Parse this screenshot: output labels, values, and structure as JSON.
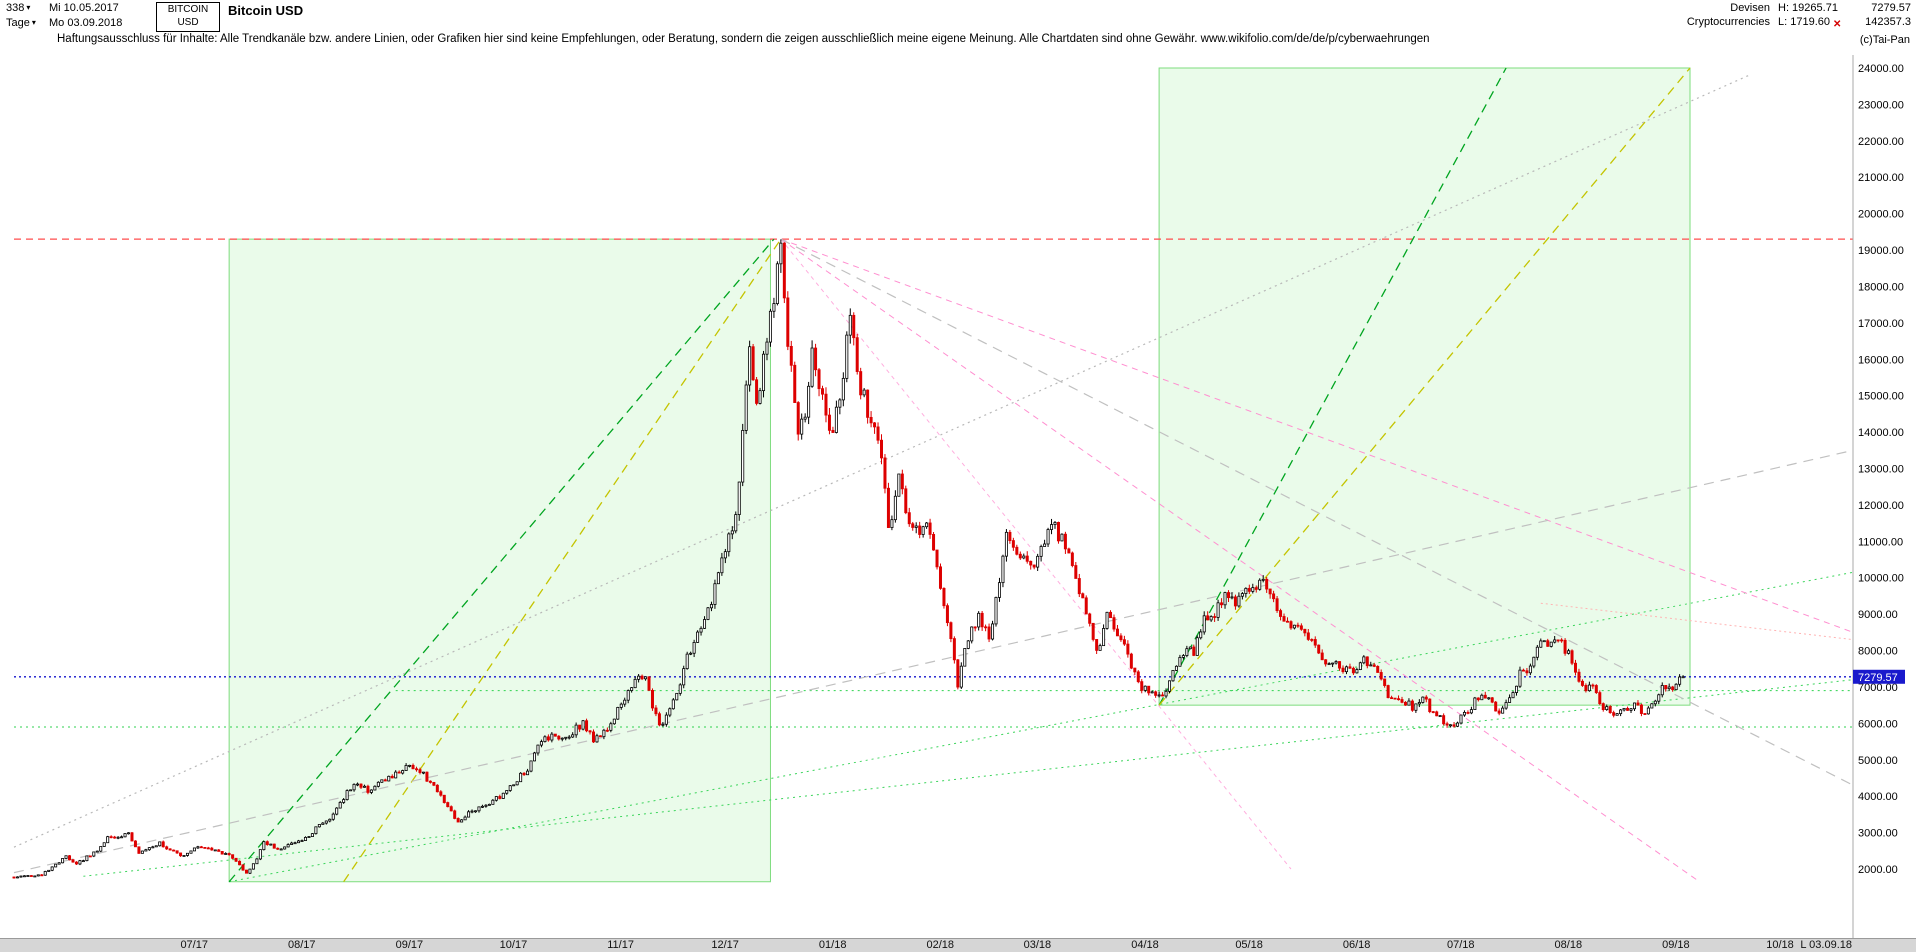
{
  "header": {
    "bars_count": "338",
    "date_from": "Mi 10.05.2017",
    "period": "Tage",
    "date_to": "Mo 03.09.2018",
    "symbol_line1": "BITCOIN",
    "symbol_line2": "USD",
    "title": "Bitcoin USD",
    "category_line1": "Devisen",
    "category_line2": "Cryptocurrencies",
    "high_label": "H: 19265.71",
    "low_label": "L: 1719.60",
    "last_price_text": "7279.57",
    "volume_text": "142357.3",
    "copyright": "(c)Tai-Pan"
  },
  "disclaimer": "Haftungsausschluss für Inhalte: Alle Trendkanäle bzw. andere Linien, oder Grafiken hier sind keine Empfehlungen, oder Beratung, sondern die zeigen ausschließlich meine eigene Meinung. Alle Chartdaten sind ohne Gewähr.  www.wikifolio.com/de/de/p/cyberwaehrungen",
  "footer": {
    "last_date_label": "L 03.09.18"
  },
  "chart_data": {
    "type": "candlestick",
    "title": "Bitcoin USD",
    "x_start_date": "2017-05-10",
    "x_end_date": "2018-09-03",
    "bars": 338,
    "high": 19265.71,
    "low": 1719.6,
    "last_price": 7279.57,
    "ylim": [
      1500,
      24500
    ],
    "y_ticks": [
      2000,
      3000,
      4000,
      5000,
      6000,
      7000,
      8000,
      9000,
      10000,
      11000,
      12000,
      13000,
      14000,
      15000,
      16000,
      17000,
      18000,
      19000,
      20000,
      21000,
      22000,
      23000,
      24000
    ],
    "x_ticks": [
      {
        "label": "07/17",
        "day": 52
      },
      {
        "label": "08/17",
        "day": 83
      },
      {
        "label": "09/17",
        "day": 114
      },
      {
        "label": "10/17",
        "day": 144
      },
      {
        "label": "11/17",
        "day": 175
      },
      {
        "label": "12/17",
        "day": 205
      },
      {
        "label": "01/18",
        "day": 236
      },
      {
        "label": "02/18",
        "day": 267
      },
      {
        "label": "03/18",
        "day": 295
      },
      {
        "label": "04/18",
        "day": 326
      },
      {
        "label": "05/18",
        "day": 356
      },
      {
        "label": "06/18",
        "day": 387
      },
      {
        "label": "07/18",
        "day": 417
      },
      {
        "label": "08/18",
        "day": 448
      },
      {
        "label": "09/18",
        "day": 479
      },
      {
        "label": "10/18",
        "day": 509
      }
    ],
    "colors": {
      "up_candle": "#000000",
      "up_fill": "#ffffff",
      "down_candle": "#dd0000",
      "box_fill": "rgba(150,235,150,0.20)",
      "box_stroke": "#7ddc7d",
      "last_price_tag": "#1a1acc"
    },
    "anchors": [
      [
        0,
        1780
      ],
      [
        8,
        1850
      ],
      [
        11,
        2050
      ],
      [
        15,
        2350
      ],
      [
        18,
        2150
      ],
      [
        24,
        2500
      ],
      [
        27,
        2870
      ],
      [
        33,
        2950
      ],
      [
        36,
        2450
      ],
      [
        40,
        2650
      ],
      [
        42,
        2700
      ],
      [
        48,
        2350
      ],
      [
        52,
        2550
      ],
      [
        55,
        2600
      ],
      [
        58,
        2500
      ],
      [
        62,
        2400
      ],
      [
        64,
        2250
      ],
      [
        67,
        1880
      ],
      [
        70,
        2300
      ],
      [
        72,
        2750
      ],
      [
        75,
        2600
      ],
      [
        77,
        2550
      ],
      [
        80,
        2700
      ],
      [
        83,
        2750
      ],
      [
        88,
        3200
      ],
      [
        92,
        3450
      ],
      [
        96,
        4150
      ],
      [
        99,
        4350
      ],
      [
        102,
        4150
      ],
      [
        106,
        4400
      ],
      [
        110,
        4600
      ],
      [
        114,
        4900
      ],
      [
        118,
        4600
      ],
      [
        121,
        4250
      ],
      [
        125,
        3700
      ],
      [
        128,
        3250
      ],
      [
        132,
        3600
      ],
      [
        136,
        3750
      ],
      [
        140,
        4000
      ],
      [
        144,
        4350
      ],
      [
        148,
        4750
      ],
      [
        152,
        5500
      ],
      [
        156,
        5650
      ],
      [
        160,
        5700
      ],
      [
        164,
        6000
      ],
      [
        167,
        5550
      ],
      [
        170,
        5750
      ],
      [
        174,
        6350
      ],
      [
        178,
        7100
      ],
      [
        182,
        7400
      ],
      [
        184,
        6450
      ],
      [
        186,
        5900
      ],
      [
        190,
        6550
      ],
      [
        194,
        7800
      ],
      [
        199,
        8750
      ],
      [
        202,
        9700
      ],
      [
        205,
        10900
      ],
      [
        208,
        11600
      ],
      [
        212,
        16200
      ],
      [
        214,
        14600
      ],
      [
        217,
        16700
      ],
      [
        219,
        17600
      ],
      [
        221,
        19200
      ],
      [
        223,
        16500
      ],
      [
        226,
        13900
      ],
      [
        228,
        14600
      ],
      [
        230,
        16100
      ],
      [
        233,
        15000
      ],
      [
        236,
        13900
      ],
      [
        238,
        15000
      ],
      [
        241,
        17100
      ],
      [
        244,
        15200
      ],
      [
        247,
        14300
      ],
      [
        250,
        13500
      ],
      [
        252,
        11200
      ],
      [
        255,
        12900
      ],
      [
        258,
        11500
      ],
      [
        261,
        11300
      ],
      [
        263,
        11600
      ],
      [
        266,
        10200
      ],
      [
        268,
        9100
      ],
      [
        270,
        8300
      ],
      [
        272,
        6950
      ],
      [
        274,
        8200
      ],
      [
        278,
        8900
      ],
      [
        281,
        8300
      ],
      [
        284,
        9900
      ],
      [
        286,
        11200
      ],
      [
        290,
        10500
      ],
      [
        294,
        10300
      ],
      [
        297,
        11000
      ],
      [
        299,
        11500
      ],
      [
        303,
        10900
      ],
      [
        306,
        9900
      ],
      [
        309,
        9100
      ],
      [
        312,
        7900
      ],
      [
        315,
        8950
      ],
      [
        318,
        8500
      ],
      [
        321,
        7900
      ],
      [
        324,
        7100
      ],
      [
        326,
        6950
      ],
      [
        329,
        6800
      ],
      [
        331,
        6650
      ],
      [
        334,
        7400
      ],
      [
        337,
        7950
      ],
      [
        340,
        8000
      ],
      [
        343,
        8900
      ],
      [
        346,
        8950
      ],
      [
        349,
        9650
      ],
      [
        352,
        9350
      ],
      [
        355,
        9600
      ],
      [
        358,
        9750
      ],
      [
        360,
        9850
      ],
      [
        364,
        9200
      ],
      [
        368,
        8700
      ],
      [
        371,
        8450
      ],
      [
        374,
        8250
      ],
      [
        378,
        7550
      ],
      [
        381,
        7600
      ],
      [
        385,
        7450
      ],
      [
        389,
        7700
      ],
      [
        392,
        7500
      ],
      [
        396,
        6800
      ],
      [
        399,
        6750
      ],
      [
        403,
        6450
      ],
      [
        406,
        6700
      ],
      [
        410,
        6150
      ],
      [
        413,
        6050
      ],
      [
        415,
        5880
      ],
      [
        418,
        6250
      ],
      [
        421,
        6600
      ],
      [
        424,
        6750
      ],
      [
        428,
        6350
      ],
      [
        431,
        6650
      ],
      [
        434,
        7350
      ],
      [
        437,
        7450
      ],
      [
        440,
        8350
      ],
      [
        443,
        8200
      ],
      [
        446,
        8150
      ],
      [
        449,
        7750
      ],
      [
        452,
        7000
      ],
      [
        455,
        6950
      ],
      [
        458,
        6400
      ],
      [
        461,
        6250
      ],
      [
        464,
        6350
      ],
      [
        467,
        6450
      ],
      [
        470,
        6300
      ],
      [
        473,
        6700
      ],
      [
        475,
        7000
      ],
      [
        478,
        6950
      ],
      [
        481,
        7279.57
      ]
    ],
    "boxes": [
      {
        "name": "trend-box-2017",
        "d1": 62,
        "p1": 1650,
        "d2": 218,
        "p2": 19300
      },
      {
        "name": "trend-box-2018",
        "d1": 330,
        "p1": 6500,
        "d2": 483,
        "p2": 24000
      }
    ],
    "trendlines": [
      {
        "name": "resistance-19300",
        "d1": 0,
        "p1": 19300,
        "d2": 530,
        "p2": 19300,
        "color": "#ff4d4d",
        "dash": "7,5",
        "w": 1.2
      },
      {
        "name": "last-price-line",
        "d1": 0,
        "p1": 7279.57,
        "d2": 530,
        "p2": 7279.57,
        "color": "#1515cc",
        "dash": "2,3",
        "w": 1.4
      },
      {
        "name": "support-6900",
        "d1": 110,
        "p1": 6900,
        "d2": 530,
        "p2": 6900,
        "color": "#2fd24f",
        "dash": "2,4",
        "w": 1
      },
      {
        "name": "support-5900",
        "d1": 0,
        "p1": 5900,
        "d2": 530,
        "p2": 5900,
        "color": "#2fd24f",
        "dash": "2,4",
        "w": 1
      },
      {
        "name": "rising-support-long",
        "d1": 62,
        "p1": 1650,
        "d2": 530,
        "p2": 10150,
        "color": "#3bd45b",
        "dash": "2,4",
        "w": 1
      },
      {
        "name": "rising-support-flat",
        "d1": 20,
        "p1": 1800,
        "d2": 530,
        "p2": 7200,
        "color": "#3bd45b",
        "dash": "2,4",
        "w": 1
      },
      {
        "name": "boxA-green-diagonal",
        "d1": 62,
        "p1": 1650,
        "d2": 219,
        "p2": 19300,
        "color": "#00a520",
        "dash": "9,6",
        "w": 1.3
      },
      {
        "name": "boxA-yellow-diagonal",
        "d1": 95,
        "p1": 1650,
        "d2": 221,
        "p2": 19300,
        "color": "#c4c400",
        "dash": "9,6",
        "w": 1.3
      },
      {
        "name": "boxB-green-diagonal",
        "d1": 330,
        "p1": 6500,
        "d2": 430,
        "p2": 24000,
        "color": "#00a520",
        "dash": "9,6",
        "w": 1.3
      },
      {
        "name": "boxB-yellow-diagonal",
        "d1": 330,
        "p1": 6500,
        "d2": 483,
        "p2": 24000,
        "color": "#c4c400",
        "dash": "9,6",
        "w": 1.3
      },
      {
        "name": "pink-fan-1",
        "d1": 221,
        "p1": 19300,
        "d2": 530,
        "p2": 8500,
        "color": "#ff8fd0",
        "dash": "6,5",
        "w": 1
      },
      {
        "name": "pink-fan-2",
        "d1": 221,
        "p1": 19300,
        "d2": 485,
        "p2": 1700,
        "color": "#ff8fd0",
        "dash": "6,5",
        "w": 1
      },
      {
        "name": "pink-fan-3",
        "d1": 221,
        "p1": 19300,
        "d2": 368,
        "p2": 2000,
        "color": "#ffaede",
        "dash": "4,4",
        "w": 1
      },
      {
        "name": "gray-rising-dotted",
        "d1": 0,
        "p1": 2600,
        "d2": 500,
        "p2": 23800,
        "color": "#b8b8b8",
        "dash": "2,4",
        "w": 1.2
      },
      {
        "name": "gray-rising-dashed",
        "d1": 0,
        "p1": 1900,
        "d2": 530,
        "p2": 13500,
        "color": "#c0c0c0",
        "dash": "10,7",
        "w": 1.2
      },
      {
        "name": "gray-falling-dashed",
        "d1": 221,
        "p1": 19300,
        "d2": 530,
        "p2": 4300,
        "color": "#c0c0c0",
        "dash": "10,7",
        "w": 1.2
      },
      {
        "name": "light-red-dotted",
        "d1": 440,
        "p1": 9300,
        "d2": 530,
        "p2": 8300,
        "color": "#ffb3b3",
        "dash": "2,3",
        "w": 1
      }
    ]
  }
}
